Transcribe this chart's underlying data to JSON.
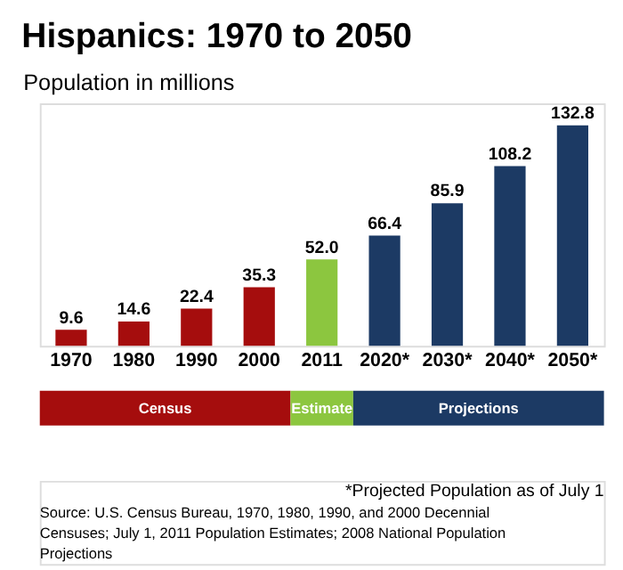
{
  "chart_data": {
    "type": "bar",
    "title": "Hispanics: 1970 to 2050",
    "ylabel": "Population in millions",
    "categories": [
      "1970",
      "1980",
      "1990",
      "2000",
      "2011",
      "2020*",
      "2030*",
      "2040*",
      "2050*"
    ],
    "values": [
      9.6,
      14.6,
      22.4,
      35.3,
      52.0,
      66.4,
      85.9,
      108.2,
      132.8
    ],
    "value_labels": [
      "9.6",
      "14.6",
      "22.4",
      "35.3",
      "52.0",
      "66.4",
      "85.9",
      "108.2",
      "132.8"
    ],
    "colors": [
      "#a50d0d",
      "#a50d0d",
      "#a50d0d",
      "#a50d0d",
      "#8cc63f",
      "#1c3a64",
      "#1c3a64",
      "#1c3a64",
      "#1c3a64"
    ],
    "annotations": [
      "Census",
      "Estimate",
      "Projections",
      "*Projected Population as of July 1",
      "Source: U.S. Census Bureau, 1970, 1980, 1990, and 2000 Decennial Censuses; July 1, 2011 Population Estimates; 2008 National Population Projections"
    ],
    "grid": false,
    "legend": false
  }
}
